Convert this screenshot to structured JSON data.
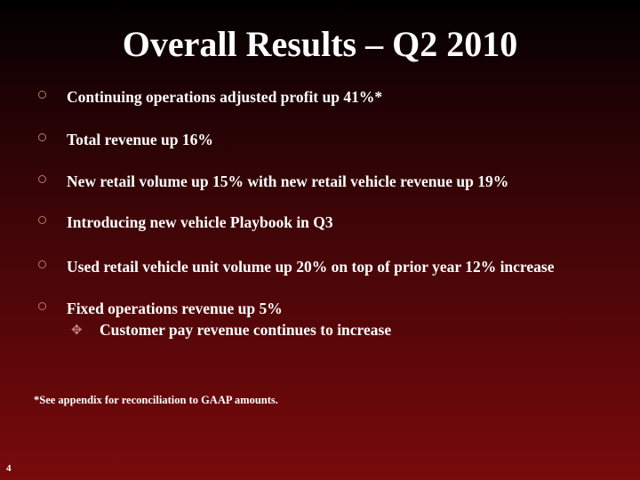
{
  "title": "Overall Results – Q2 2010",
  "bullets": [
    {
      "text": "Continuing operations adjusted profit up 41%*"
    },
    {
      "text": "Total revenue up 16%"
    },
    {
      "text": "New retail volume up 15% with new retail vehicle revenue up 19%"
    },
    {
      "text": "Introducing new vehicle Playbook in Q3"
    },
    {
      "text": "Used retail vehicle unit volume up 20% on top of prior year 12% increase"
    },
    {
      "text": "Fixed operations revenue up 5%"
    }
  ],
  "sub_bullets": [
    {
      "text": "Customer pay revenue continues to increase"
    }
  ],
  "footnote": "*See appendix for reconciliation to GAAP amounts.",
  "page_number": "4",
  "icons": {
    "bullet": "hollow-circle-icon",
    "sub_bullet": "four-point-star-icon"
  },
  "colors": {
    "background_top": "#000000",
    "background_bottom": "#780a0b",
    "text": "#ffffff",
    "bullet_marker": "#b87a70"
  }
}
